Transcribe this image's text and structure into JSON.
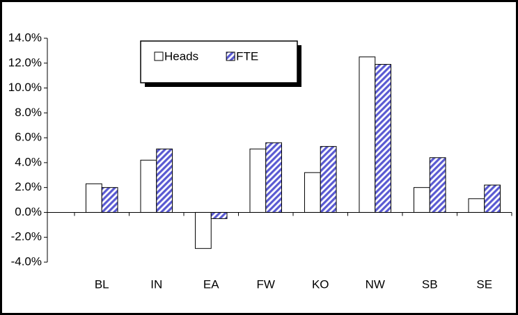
{
  "chart_data": {
    "type": "bar",
    "categories": [
      "BL",
      "IN",
      "EA",
      "FW",
      "KO",
      "NW",
      "SB",
      "SE"
    ],
    "series": [
      {
        "name": "Heads",
        "color": "#ffffff",
        "values": [
          2.3,
          4.2,
          -2.9,
          5.1,
          3.2,
          12.5,
          2.0,
          1.1
        ]
      },
      {
        "name": "FTE",
        "color": "#5a5ad2",
        "hatch": true,
        "values": [
          2.0,
          5.1,
          -0.5,
          5.6,
          5.3,
          11.9,
          4.4,
          2.2
        ]
      }
    ],
    "ylim": [
      -4,
      14
    ],
    "yticks": [
      {
        "value": -4,
        "label": "-4.0%"
      },
      {
        "value": -2,
        "label": "-2.0%"
      },
      {
        "value": 0,
        "label": "0.0%"
      },
      {
        "value": 2,
        "label": "2.0%"
      },
      {
        "value": 4,
        "label": "4.0%"
      },
      {
        "value": 6,
        "label": "6.0%"
      },
      {
        "value": 8,
        "label": "8.0%"
      },
      {
        "value": 10,
        "label": "10.0%"
      },
      {
        "value": 12,
        "label": "12.0%"
      },
      {
        "value": 14,
        "label": "14.0%"
      }
    ],
    "grid": false,
    "legend": "top"
  }
}
